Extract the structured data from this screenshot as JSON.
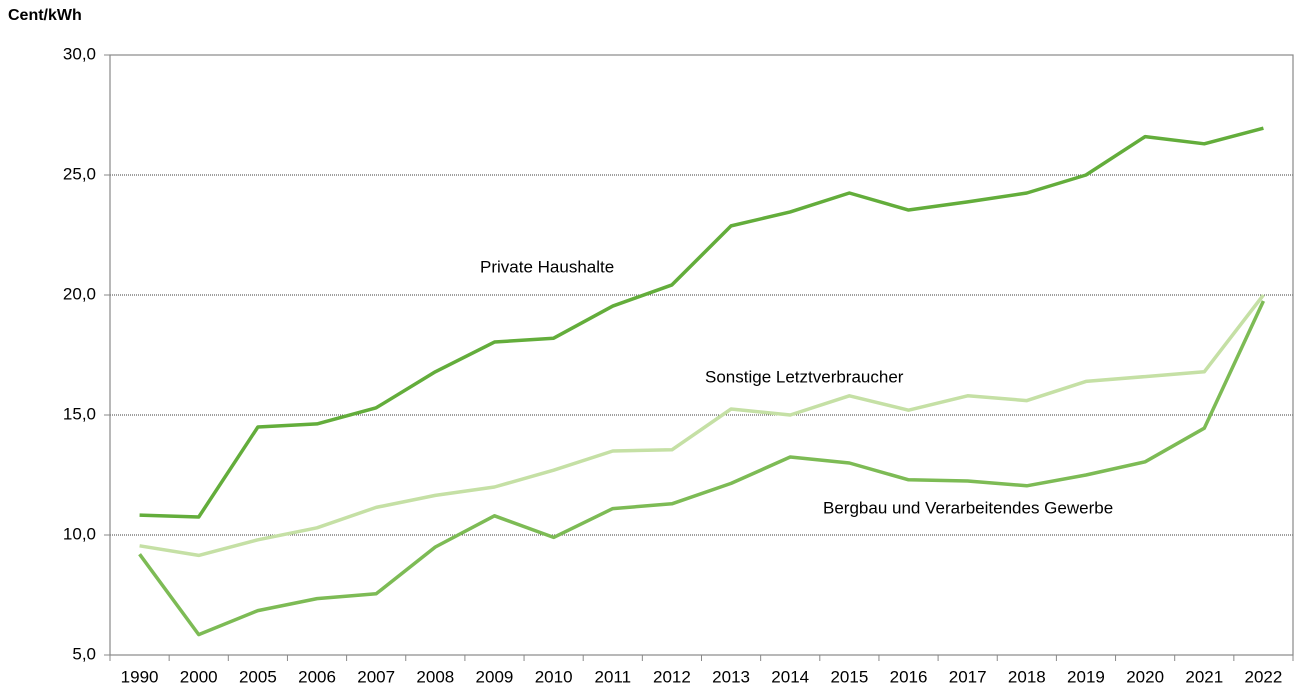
{
  "chart_data": {
    "type": "line",
    "y_axis_label": "Cent/kWh",
    "categories": [
      "1990",
      "2000",
      "2005",
      "2006",
      "2007",
      "2008",
      "2009",
      "2010",
      "2011",
      "2012",
      "2013",
      "2014",
      "2015",
      "2016",
      "2017",
      "2018",
      "2019",
      "2020",
      "2021",
      "2022"
    ],
    "series": [
      {
        "name": "Private Haushalte",
        "color": "#63ad3b",
        "values": [
          10.83,
          10.75,
          14.5,
          14.63,
          15.3,
          16.8,
          18.04,
          18.2,
          19.54,
          20.42,
          22.88,
          23.46,
          24.25,
          23.54,
          23.88,
          24.25,
          25.0,
          26.6,
          26.3,
          26.95
        ]
      },
      {
        "name": "Sonstige Letztverbraucher",
        "color": "#c5e0a5",
        "values": [
          9.55,
          9.15,
          9.8,
          10.3,
          11.15,
          11.65,
          12.0,
          12.7,
          13.5,
          13.55,
          15.25,
          15.0,
          15.8,
          15.2,
          15.8,
          15.6,
          16.4,
          16.6,
          16.8,
          20.0
        ]
      },
      {
        "name": "Bergbau und Verarbeitendes Gewerbe",
        "color": "#7dbb55",
        "values": [
          9.2,
          5.85,
          6.85,
          7.35,
          7.55,
          9.5,
          10.8,
          9.9,
          11.1,
          11.3,
          12.15,
          13.25,
          13.0,
          12.3,
          12.25,
          12.05,
          12.5,
          13.05,
          14.45,
          19.75
        ]
      }
    ],
    "ylim": [
      5,
      30
    ],
    "yticks": [
      {
        "value": 5,
        "label": "5,0"
      },
      {
        "value": 10,
        "label": "10,0"
      },
      {
        "value": 15,
        "label": "15,0"
      },
      {
        "value": 20,
        "label": "20,0"
      },
      {
        "value": 25,
        "label": "25,0"
      },
      {
        "value": 30,
        "label": "30,0"
      }
    ],
    "grid": true
  }
}
